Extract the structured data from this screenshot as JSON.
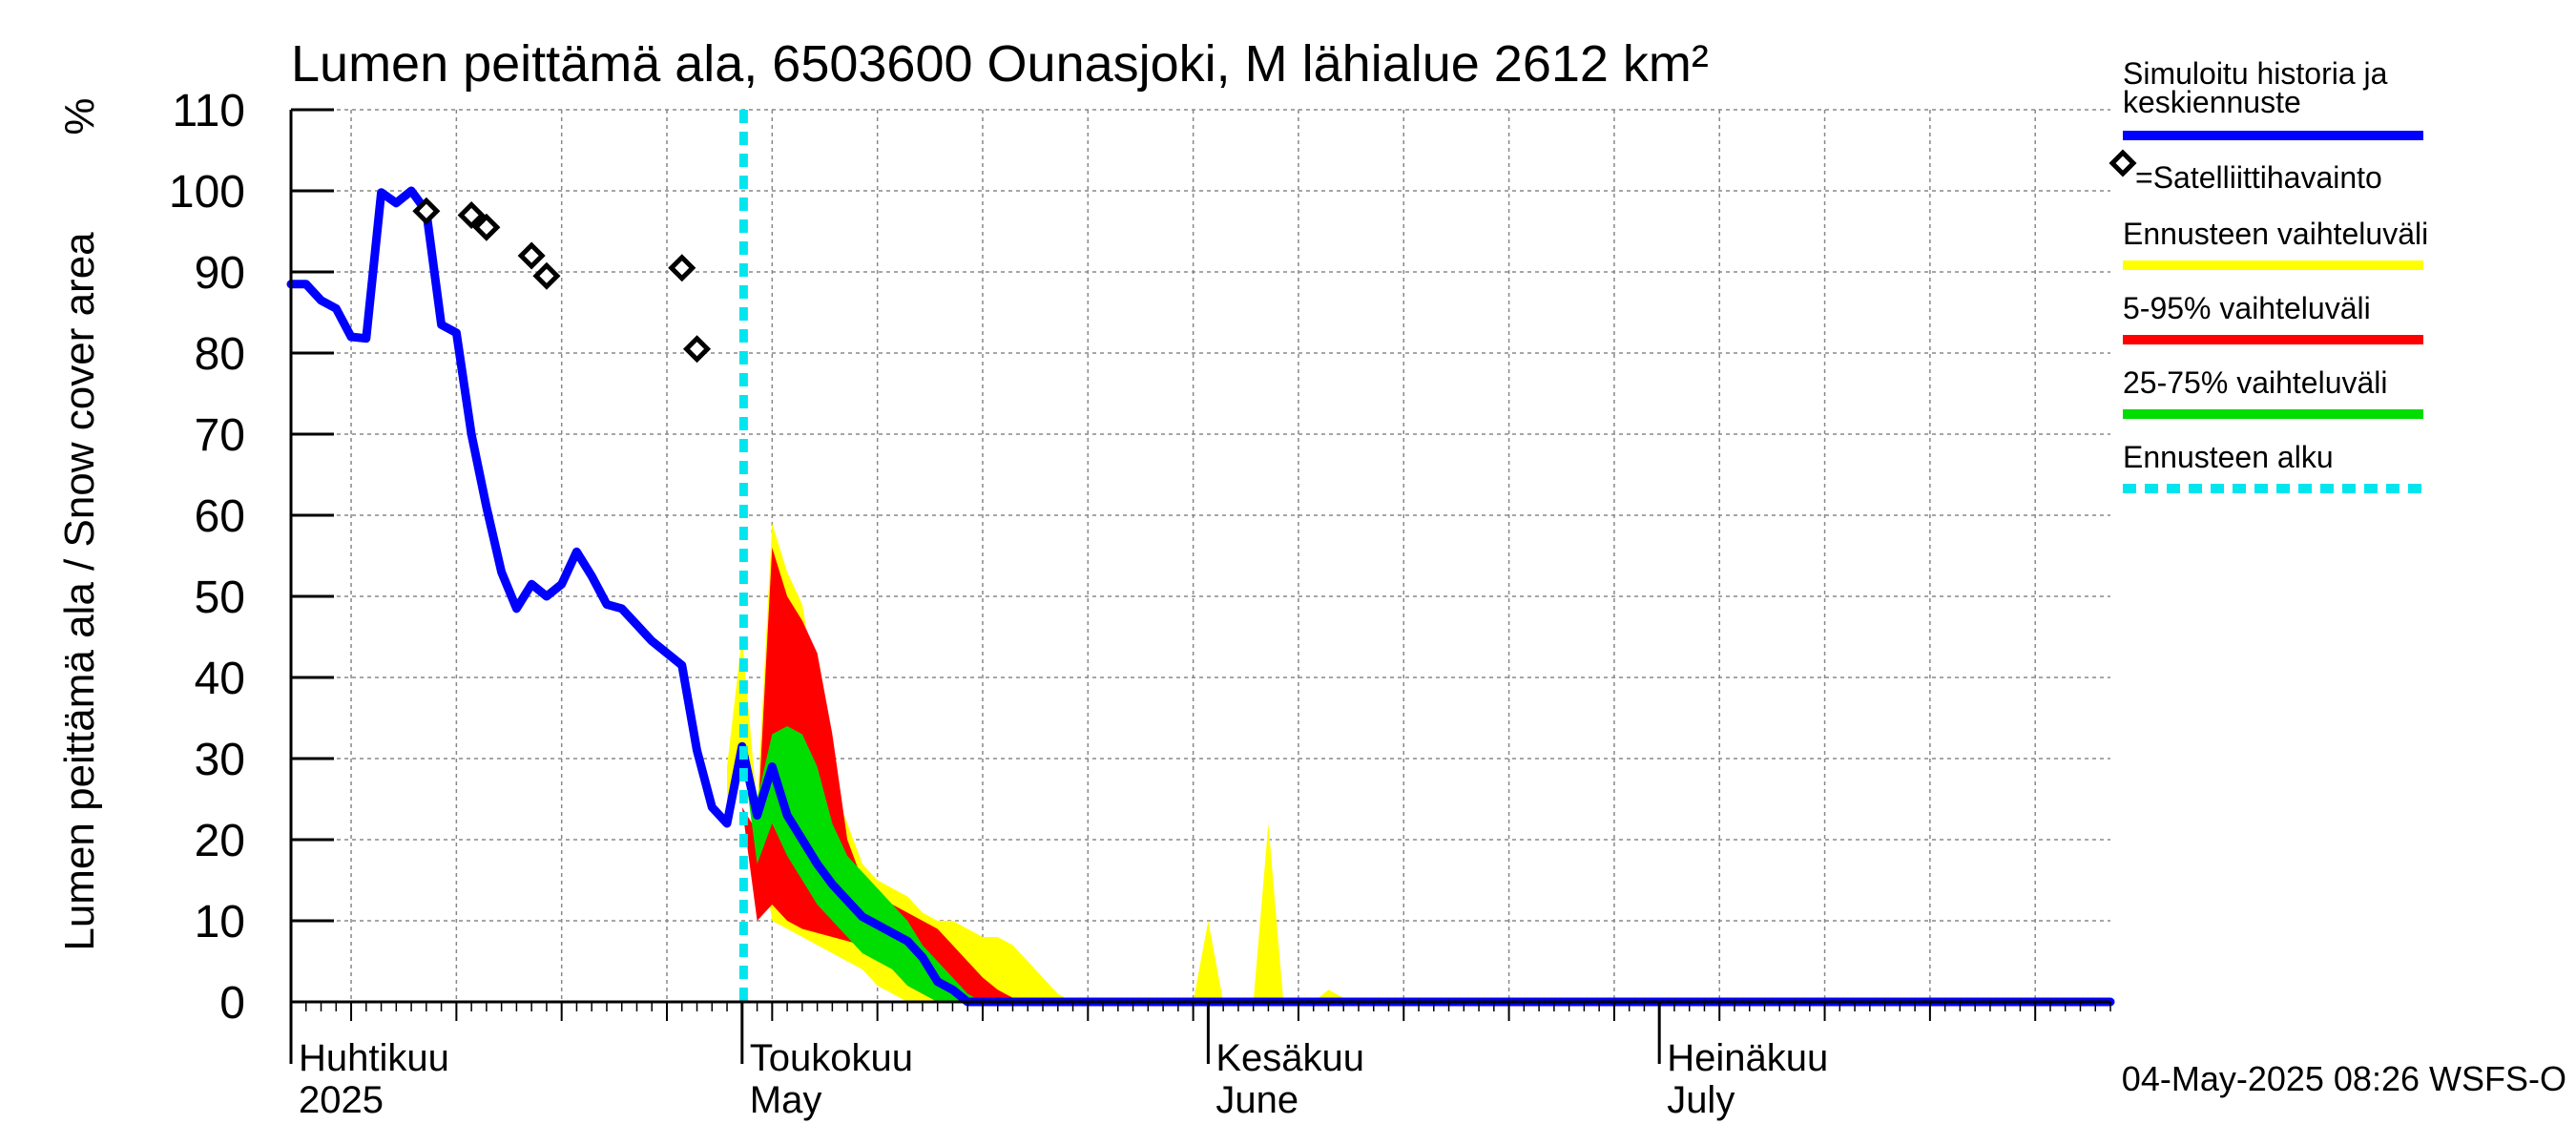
{
  "chart_data": {
    "type": "area",
    "title": "Lumen peittämä ala, 6503600 Ounasjoki, M lähialue 2612 km²",
    "ylabel": "Lumen peittämä ala / Snow cover area",
    "yunit": "%",
    "ylim": [
      0,
      110
    ],
    "yticks": [
      0,
      10,
      20,
      30,
      40,
      50,
      60,
      70,
      80,
      90,
      100,
      110
    ],
    "x_unit": "day of year 2025",
    "xlim": [
      91,
      212
    ],
    "grid": true,
    "month_labels": [
      {
        "fi": "Huhtikuu",
        "en": "2025",
        "day": 91
      },
      {
        "fi": "Toukokuu",
        "en": "May",
        "day": 121
      },
      {
        "fi": "Kesäkuu",
        "en": "June",
        "day": 152
      },
      {
        "fi": "Heinäkuu",
        "en": "July",
        "day": 182
      }
    ],
    "month_days": [
      91,
      121,
      152,
      182
    ],
    "week_days": [
      95,
      102,
      109,
      116,
      123,
      130,
      137,
      144,
      151,
      158,
      165,
      172,
      179,
      186,
      193,
      200,
      207
    ],
    "forecast_start_day": 121.1,
    "series": [
      {
        "name": "Simuloitu historia ja keskiennuste",
        "color": "#0000ff",
        "points": [
          [
            91,
            88.5
          ],
          [
            92,
            88.5
          ],
          [
            93,
            86.5
          ],
          [
            94,
            85.5
          ],
          [
            95,
            82
          ],
          [
            96,
            81.8
          ],
          [
            97,
            99.8
          ],
          [
            98,
            98.5
          ],
          [
            99,
            100
          ],
          [
            100,
            97.5
          ],
          [
            101,
            83.5
          ],
          [
            102,
            82.5
          ],
          [
            103,
            70
          ],
          [
            104,
            61
          ],
          [
            105,
            53
          ],
          [
            106,
            48.5
          ],
          [
            107,
            51.5
          ],
          [
            108,
            50
          ],
          [
            109,
            51.5
          ],
          [
            110,
            55.5
          ],
          [
            111,
            52.5
          ],
          [
            112,
            49
          ],
          [
            113,
            48.5
          ],
          [
            114,
            46.5
          ],
          [
            115,
            44.5
          ],
          [
            116,
            43
          ],
          [
            117,
            41.5
          ],
          [
            118,
            31
          ],
          [
            119,
            24
          ],
          [
            120,
            22
          ],
          [
            121,
            31.5
          ],
          [
            122,
            23
          ],
          [
            123,
            29
          ],
          [
            124,
            23
          ],
          [
            125,
            20
          ],
          [
            126,
            17
          ],
          [
            127,
            14.5
          ],
          [
            128,
            12.5
          ],
          [
            129,
            10.5
          ],
          [
            130,
            9.5
          ],
          [
            131,
            8.5
          ],
          [
            132,
            7.5
          ],
          [
            133,
            5.5
          ],
          [
            134,
            2.5
          ],
          [
            135,
            1.5
          ],
          [
            136,
            0
          ],
          [
            212,
            0
          ]
        ]
      }
    ],
    "satellite_observations": {
      "name": "=Satelliittihavainto",
      "points": [
        [
          100,
          97.5
        ],
        [
          103,
          97
        ],
        [
          104,
          95.5
        ],
        [
          107,
          92
        ],
        [
          108,
          89.5
        ],
        [
          117,
          90.5
        ],
        [
          118,
          80.5
        ]
      ]
    },
    "bands": [
      {
        "name": "Ennusteen vaihteluväli",
        "color": "#ffff00",
        "upper": [
          [
            120,
            29
          ],
          [
            121,
            45
          ],
          [
            122,
            24
          ],
          [
            123,
            59
          ],
          [
            124,
            53
          ],
          [
            125,
            49
          ],
          [
            126,
            38
          ],
          [
            127,
            27
          ],
          [
            128,
            22
          ],
          [
            129,
            17
          ],
          [
            130,
            15
          ],
          [
            131,
            14
          ],
          [
            132,
            13
          ],
          [
            133,
            11
          ],
          [
            134,
            10
          ],
          [
            135,
            10
          ],
          [
            136,
            9
          ],
          [
            137,
            8
          ],
          [
            138,
            8
          ],
          [
            139,
            7
          ],
          [
            140,
            5
          ],
          [
            141,
            3
          ],
          [
            142,
            1
          ],
          [
            143,
            0
          ],
          [
            151,
            0
          ],
          [
            152,
            10
          ],
          [
            153,
            0
          ],
          [
            155,
            0
          ],
          [
            156,
            22
          ],
          [
            157,
            0
          ],
          [
            159,
            0
          ],
          [
            160,
            1.5
          ],
          [
            161,
            0.5
          ],
          [
            162,
            0
          ]
        ],
        "lower": [
          [
            120,
            23
          ],
          [
            121,
            29
          ],
          [
            122,
            22
          ],
          [
            123,
            10
          ],
          [
            124,
            9
          ],
          [
            125,
            8
          ],
          [
            126,
            7
          ],
          [
            127,
            6
          ],
          [
            128,
            5
          ],
          [
            129,
            4
          ],
          [
            130,
            2
          ],
          [
            131,
            1
          ],
          [
            132,
            0
          ],
          [
            162,
            0
          ]
        ]
      },
      {
        "name": "5-95% vaihteluväli",
        "color": "#ff0000",
        "upper": [
          [
            120,
            23
          ],
          [
            121,
            24
          ],
          [
            122,
            21
          ],
          [
            123,
            56
          ],
          [
            124,
            50
          ],
          [
            125,
            47
          ],
          [
            126,
            43
          ],
          [
            127,
            33
          ],
          [
            128,
            20
          ],
          [
            129,
            15
          ],
          [
            130,
            13
          ],
          [
            131,
            12
          ],
          [
            132,
            11
          ],
          [
            133,
            10
          ],
          [
            134,
            9
          ],
          [
            135,
            7
          ],
          [
            136,
            5
          ],
          [
            137,
            3
          ],
          [
            138,
            1.5
          ],
          [
            139,
            0.5
          ],
          [
            140,
            0
          ]
        ],
        "lower": [
          [
            120,
            23
          ],
          [
            121,
            24
          ],
          [
            122,
            10
          ],
          [
            123,
            12
          ],
          [
            124,
            10
          ],
          [
            125,
            9
          ],
          [
            126,
            8.5
          ],
          [
            127,
            8
          ],
          [
            128,
            7.5
          ],
          [
            129,
            7
          ],
          [
            130,
            6
          ],
          [
            131,
            4
          ],
          [
            132,
            2
          ],
          [
            133,
            1
          ],
          [
            134,
            0
          ],
          [
            140,
            0
          ]
        ]
      },
      {
        "name": "25-75% vaihteluväli",
        "color": "#00dd00",
        "upper": [
          [
            121,
            32
          ],
          [
            122,
            25
          ],
          [
            123,
            33
          ],
          [
            124,
            34
          ],
          [
            125,
            33
          ],
          [
            126,
            29
          ],
          [
            127,
            22
          ],
          [
            128,
            18
          ],
          [
            129,
            16
          ],
          [
            130,
            14
          ],
          [
            131,
            12
          ],
          [
            132,
            10
          ],
          [
            133,
            7
          ],
          [
            134,
            5
          ],
          [
            135,
            3
          ],
          [
            136,
            1
          ],
          [
            137,
            0
          ]
        ],
        "lower": [
          [
            121,
            31
          ],
          [
            122,
            17
          ],
          [
            123,
            22
          ],
          [
            124,
            18
          ],
          [
            125,
            15
          ],
          [
            126,
            12
          ],
          [
            127,
            10
          ],
          [
            128,
            8
          ],
          [
            129,
            6
          ],
          [
            130,
            5
          ],
          [
            131,
            4
          ],
          [
            132,
            2
          ],
          [
            133,
            1
          ],
          [
            134,
            0
          ],
          [
            137,
            0
          ]
        ]
      }
    ],
    "legend": [
      {
        "label": "Simuloitu historia ja",
        "label2": "keskiennuste",
        "style": "line",
        "color": "#0000ff"
      },
      {
        "label": "=Satelliittihavainto",
        "style": "diamond",
        "color": "#000000"
      },
      {
        "label": "Ennusteen vaihteluväli",
        "style": "line",
        "color": "#ffff00"
      },
      {
        "label": "5-95% vaihteluväli",
        "style": "line",
        "color": "#ff0000"
      },
      {
        "label": "25-75% vaihteluväli",
        "style": "line",
        "color": "#00dd00"
      },
      {
        "label": "Ennusteen alku",
        "style": "dash",
        "color": "#00e5ee"
      }
    ],
    "legend_position": "right",
    "timestamp": "04-May-2025 08:26 WSFS-O"
  }
}
